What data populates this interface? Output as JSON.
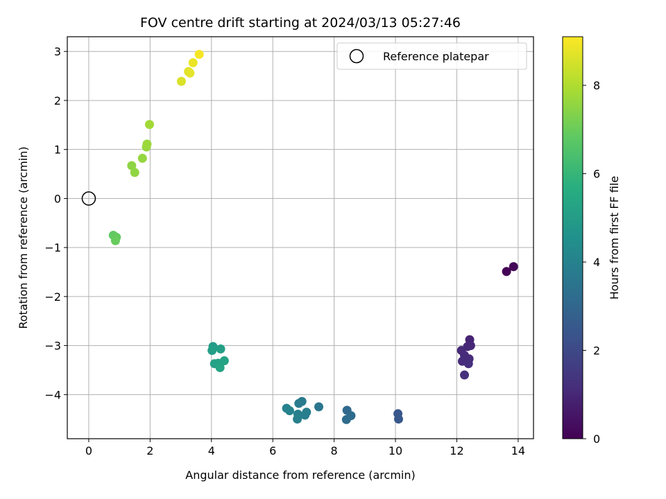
{
  "chart_data": {
    "type": "scatter",
    "title": "FOV centre drift starting at 2024/03/13 05:27:46",
    "xlabel": "Angular distance from reference (arcmin)",
    "ylabel": "Rotation from reference (arcmin)",
    "xlim": [
      -0.7,
      14.5
    ],
    "ylim": [
      -4.9,
      3.3
    ],
    "xticks": [
      0,
      2,
      4,
      6,
      8,
      10,
      12,
      14
    ],
    "yticks": [
      3,
      2,
      1,
      0,
      -1,
      -2,
      -3,
      -4
    ],
    "grid": true,
    "legend": {
      "placement": "top-right",
      "entries": [
        "Reference platepar"
      ]
    },
    "reference_point": {
      "x": 0,
      "y": 0,
      "label": "Reference platepar",
      "marker": "open-circle"
    },
    "colorbar": {
      "label": "Hours from first FF file",
      "colormap": "viridis",
      "range": [
        0,
        9.1
      ],
      "ticks": [
        0,
        2,
        4,
        6,
        8
      ]
    },
    "points": [
      {
        "x": 13.62,
        "y": -1.49,
        "hours": 0.05
      },
      {
        "x": 13.85,
        "y": -1.39,
        "hours": 0.15
      },
      {
        "x": 12.42,
        "y": -2.88,
        "hours": 0.9
      },
      {
        "x": 12.45,
        "y": -3.0,
        "hours": 0.95
      },
      {
        "x": 12.35,
        "y": -3.02,
        "hours": 1.0
      },
      {
        "x": 12.15,
        "y": -3.1,
        "hours": 1.05
      },
      {
        "x": 12.25,
        "y": -3.2,
        "hours": 1.1
      },
      {
        "x": 12.4,
        "y": -3.27,
        "hours": 1.1
      },
      {
        "x": 12.18,
        "y": -3.32,
        "hours": 1.15
      },
      {
        "x": 12.38,
        "y": -3.37,
        "hours": 1.2
      },
      {
        "x": 12.25,
        "y": -3.6,
        "hours": 1.25
      },
      {
        "x": 10.08,
        "y": -4.39,
        "hours": 2.45
      },
      {
        "x": 10.1,
        "y": -4.5,
        "hours": 2.5
      },
      {
        "x": 8.42,
        "y": -4.32,
        "hours": 3.1
      },
      {
        "x": 8.55,
        "y": -4.43,
        "hours": 3.15
      },
      {
        "x": 8.4,
        "y": -4.51,
        "hours": 3.2
      },
      {
        "x": 7.5,
        "y": -4.25,
        "hours": 3.55
      },
      {
        "x": 6.95,
        "y": -4.14,
        "hours": 3.7
      },
      {
        "x": 6.85,
        "y": -4.18,
        "hours": 3.75
      },
      {
        "x": 7.1,
        "y": -4.36,
        "hours": 3.8
      },
      {
        "x": 7.05,
        "y": -4.42,
        "hours": 3.85
      },
      {
        "x": 6.82,
        "y": -4.4,
        "hours": 3.9
      },
      {
        "x": 6.8,
        "y": -4.5,
        "hours": 3.95
      },
      {
        "x": 6.45,
        "y": -4.28,
        "hours": 4.0
      },
      {
        "x": 6.55,
        "y": -4.33,
        "hours": 4.05
      },
      {
        "x": 4.05,
        "y": -3.02,
        "hours": 5.0
      },
      {
        "x": 4.02,
        "y": -3.1,
        "hours": 5.05
      },
      {
        "x": 4.3,
        "y": -3.07,
        "hours": 5.1
      },
      {
        "x": 4.1,
        "y": -3.37,
        "hours": 5.15
      },
      {
        "x": 4.22,
        "y": -3.36,
        "hours": 5.2
      },
      {
        "x": 4.42,
        "y": -3.31,
        "hours": 5.25
      },
      {
        "x": 4.28,
        "y": -3.45,
        "hours": 5.3
      },
      {
        "x": 0.8,
        "y": -0.75,
        "hours": 6.85
      },
      {
        "x": 0.9,
        "y": -0.79,
        "hours": 6.9
      },
      {
        "x": 0.87,
        "y": -0.86,
        "hours": 6.95
      },
      {
        "x": 1.4,
        "y": 0.67,
        "hours": 7.5
      },
      {
        "x": 1.5,
        "y": 0.53,
        "hours": 7.55
      },
      {
        "x": 1.75,
        "y": 0.82,
        "hours": 7.6
      },
      {
        "x": 1.88,
        "y": 1.05,
        "hours": 7.65
      },
      {
        "x": 1.9,
        "y": 1.11,
        "hours": 7.7
      },
      {
        "x": 1.98,
        "y": 1.51,
        "hours": 7.8
      },
      {
        "x": 3.02,
        "y": 2.39,
        "hours": 8.6
      },
      {
        "x": 3.25,
        "y": 2.59,
        "hours": 8.7
      },
      {
        "x": 3.3,
        "y": 2.56,
        "hours": 8.75
      },
      {
        "x": 3.4,
        "y": 2.77,
        "hours": 8.85
      },
      {
        "x": 3.6,
        "y": 2.94,
        "hours": 9.0
      }
    ]
  }
}
